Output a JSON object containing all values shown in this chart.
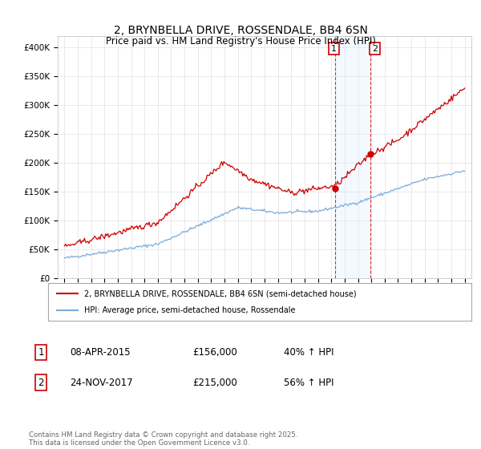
{
  "title": "2, BRYNBELLA DRIVE, ROSSENDALE, BB4 6SN",
  "subtitle": "Price paid vs. HM Land Registry's House Price Index (HPI)",
  "hpi_label": "HPI: Average price, semi-detached house, Rossendale",
  "property_label": "2, BRYNBELLA DRIVE, ROSSENDALE, BB4 6SN (semi-detached house)",
  "red_color": "#cc0000",
  "blue_color": "#7aabdb",
  "shaded_color": "#ddeeff",
  "ylim": [
    0,
    420000
  ],
  "yticks": [
    0,
    50000,
    100000,
    150000,
    200000,
    250000,
    300000,
    350000,
    400000
  ],
  "footer": "Contains HM Land Registry data © Crown copyright and database right 2025.\nThis data is licensed under the Open Government Licence v3.0.",
  "start_year": 1995,
  "end_year": 2025,
  "t_p1": 2015.29,
  "t_p2": 2017.92,
  "price_p1": 156000,
  "price_p2": 215000,
  "table": [
    [
      "1",
      "08-APR-2015",
      "£156,000",
      "40% ↑ HPI"
    ],
    [
      "2",
      "24-NOV-2017",
      "£215,000",
      "56% ↑ HPI"
    ]
  ]
}
